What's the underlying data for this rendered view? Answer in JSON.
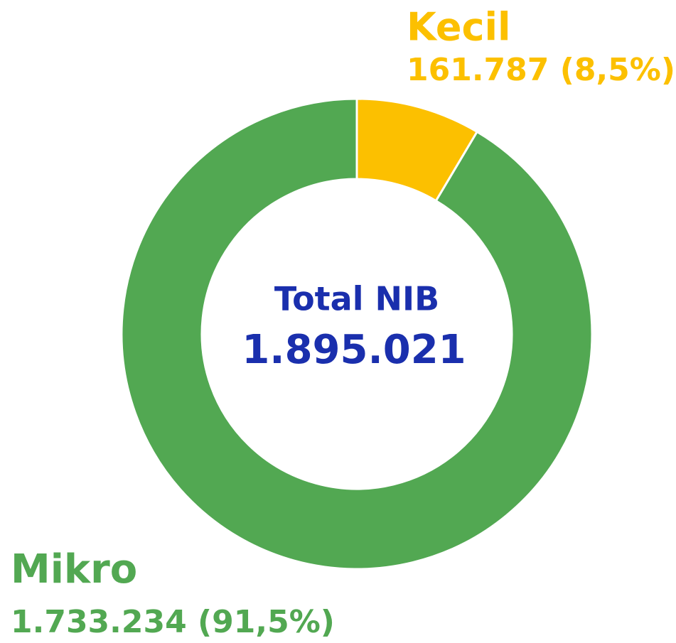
{
  "chart_data": {
    "type": "donut",
    "categories": [
      "Mikro",
      "Kecil"
    ],
    "values": [
      1733234,
      161787
    ],
    "value_labels": [
      "1.733.234 (91,5%)",
      "161.787 (8,5%)"
    ],
    "colors": [
      "#52a852",
      "#fcc000"
    ],
    "center_title": "Total NIB",
    "total": {
      "value": 1895021,
      "label": "1.895.021"
    },
    "center_color": "#1a2fad"
  }
}
